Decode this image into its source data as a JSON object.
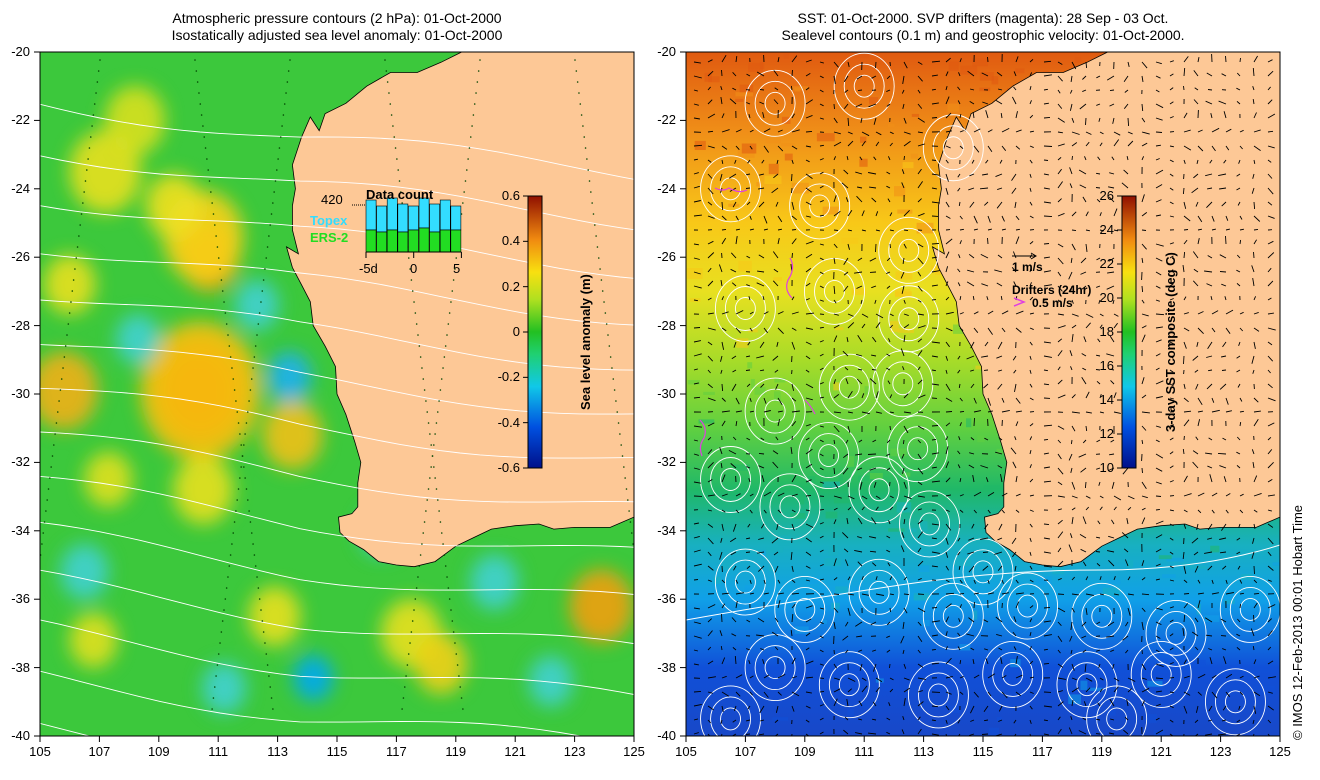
{
  "left_panel": {
    "title_line1": "Atmospheric pressure contours (2 hPa): 01-Oct-2000",
    "title_line2": "Isostatically adjusted sea level anomaly: 01-Oct-2000",
    "colorbar": {
      "label": "Sea level anomaly (m)",
      "ticks": [
        "0.6",
        "0.4",
        "0.2",
        "0",
        "-0.2",
        "-0.4",
        "-0.6"
      ],
      "range": [
        -0.6,
        0.6
      ]
    },
    "inset": {
      "title": "Data count",
      "count": "420",
      "series": [
        {
          "name": "Topex",
          "color": "#33ddff"
        },
        {
          "name": "ERS-2",
          "color": "#22dd22"
        }
      ],
      "x_ticks": [
        "-5d",
        "0",
        "5"
      ]
    }
  },
  "right_panel": {
    "title_line1": "SST: 01-Oct-2000. SVP drifters (magenta): 28 Sep - 03 Oct.",
    "title_line2": "Sealevel contours (0.1 m) and geostrophic velocity: 01-Oct-2000.",
    "colorbar": {
      "label": "3-day SST composite (deg C)",
      "ticks": [
        "26",
        "24",
        "22",
        "20",
        "18",
        "16",
        "14",
        "12",
        "10"
      ],
      "range": [
        10,
        26
      ]
    },
    "velocity_scale": "1 m/s",
    "drifters_label": "Drifters (24hr)",
    "drifters_scale": "0.5 m/s"
  },
  "axes": {
    "lat_ticks": [
      "-20",
      "-22",
      "-24",
      "-26",
      "-28",
      "-30",
      "-32",
      "-34",
      "-36",
      "-38",
      "-40"
    ],
    "lon_ticks": [
      "105",
      "107",
      "109",
      "111",
      "113",
      "115",
      "117",
      "119",
      "121",
      "123",
      "125"
    ],
    "lat_range": [
      -40,
      -20
    ],
    "lon_range": [
      105,
      125
    ]
  },
  "colors": {
    "land": "#fdc896",
    "contour": "#ffffff",
    "drifter": "#e040e0"
  },
  "credit": "© IMOS 12-Feb-2013 00:01 Hobart Time"
}
